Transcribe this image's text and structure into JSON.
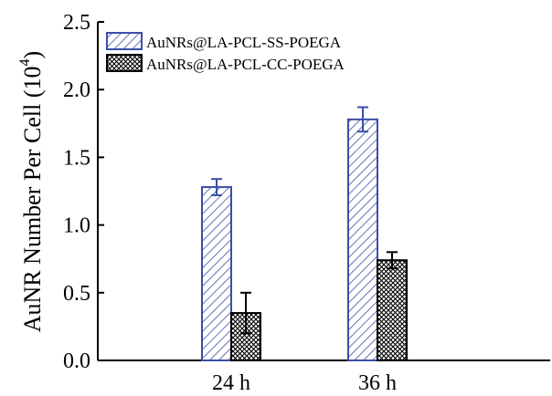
{
  "chart_data": {
    "type": "bar",
    "title": "",
    "xlabel": "",
    "ylabel": "AuNR Number Per Cell",
    "ylabel_unit_base": "10",
    "ylabel_unit_exp": "4",
    "categories": [
      "24 h",
      "36 h"
    ],
    "ylim": [
      0,
      2.5
    ],
    "yticks": [
      "0.0",
      "0.5",
      "1.0",
      "1.5",
      "2.0",
      "2.5"
    ],
    "grid": false,
    "legend_position": "top-left",
    "series": [
      {
        "name": "AuNRs@LA-PCL-SS-POEGA",
        "values": [
          1.28,
          1.78
        ],
        "errors": [
          0.06,
          0.09
        ],
        "color": "#3b4ea8",
        "pattern": "diagonal-hatch"
      },
      {
        "name": "AuNRs@LA-PCL-CC-POEGA",
        "values": [
          0.35,
          0.74
        ],
        "errors": [
          0.15,
          0.06
        ],
        "color": "#000000",
        "pattern": "crosshatch"
      }
    ]
  }
}
